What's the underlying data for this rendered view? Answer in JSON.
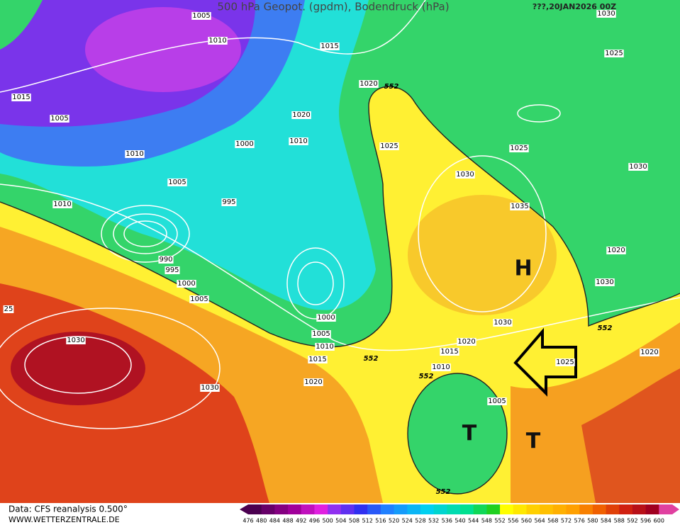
{
  "header": {
    "title": "500 hPa Geopot. (gpdm), Bodendruck (hPa)",
    "date": "???,20JAN2026 00Z"
  },
  "isobar_labels": [
    "1005",
    "1010",
    "1015",
    "1015",
    "1005",
    "1020",
    "1020",
    "1010",
    "1000",
    "1010",
    "1025",
    "1025",
    "1025",
    "1030",
    "1030",
    "1005",
    "995",
    "1010",
    "1035",
    "1020",
    "990",
    "995",
    "1000",
    "1005",
    "1030",
    "1000",
    "1030",
    "1005",
    "1010",
    "1020",
    "1015",
    "1015",
    "1010",
    "1025",
    "1020",
    "1020",
    "1030",
    "1030",
    "1005",
    "25",
    "1030"
  ],
  "geopotential_labels": [
    "552",
    "552",
    "552",
    "552",
    "552"
  ],
  "pressure_systems": [
    "H",
    "T",
    "T"
  ],
  "footer": {
    "source": "Data: CFS reanalysis 0.500°",
    "website": "WWW.WETTERZENTRALE.DE"
  },
  "colorbar": {
    "labels": [
      476,
      480,
      484,
      488,
      492,
      496,
      500,
      504,
      508,
      512,
      516,
      520,
      524,
      528,
      532,
      536,
      540,
      544,
      548,
      552,
      556,
      560,
      564,
      568,
      572,
      576,
      580,
      584,
      588,
      592,
      596,
      600
    ]
  }
}
